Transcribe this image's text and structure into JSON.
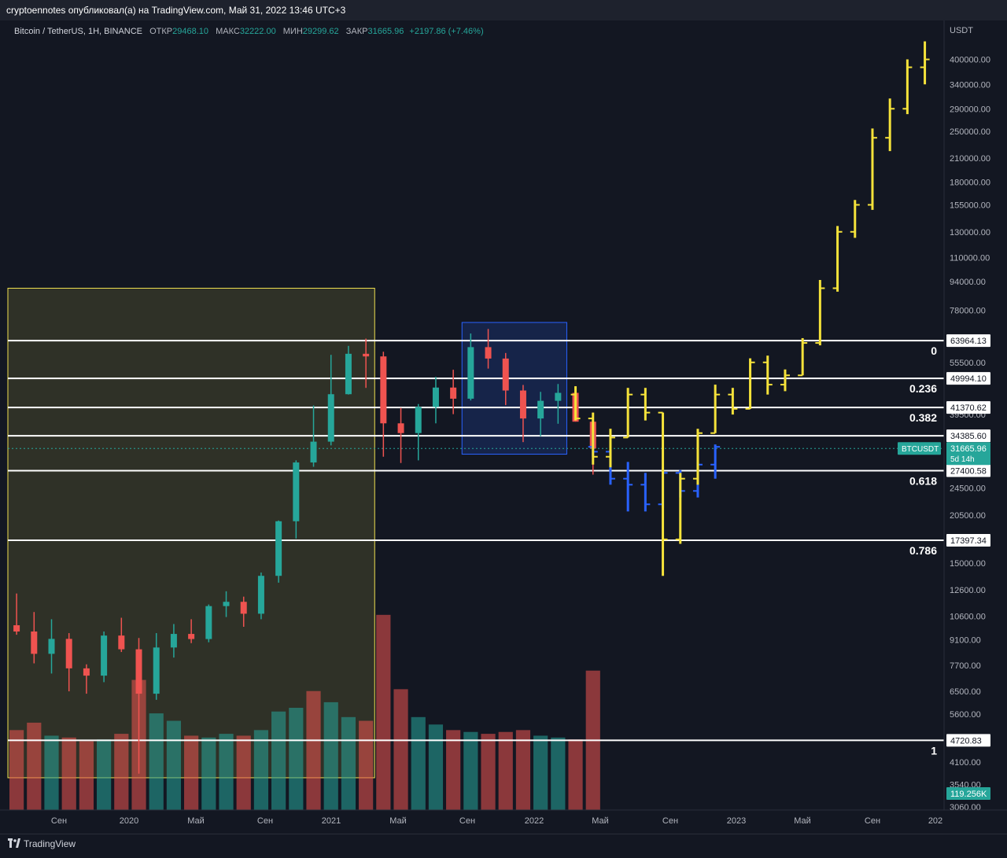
{
  "header": {
    "publish_text": "cryptoennotes опубликовал(а) на TradingView.com, Май 31, 2022 13:46 UTC+3"
  },
  "symbol_line": {
    "name": "Bitcoin / TetherUS, 1H, BINANCE",
    "open_label": "ОТКР",
    "open_value": "29468.10",
    "high_label": "МАКС",
    "high_value": "32222.00",
    "low_label": "МИН",
    "low_value": "29299.62",
    "close_label": "ЗАКР",
    "close_value": "31665.96",
    "change": "+2197.86 (+7.46%)"
  },
  "footer": {
    "logo_text": "TradingView"
  },
  "chart_data": {
    "type": "candlestick",
    "currency_label": "USDT",
    "y_scale": "log",
    "y_range": [
      3060,
      480000
    ],
    "y_ticks": [
      "400000.00",
      "340000.00",
      "290000.00",
      "250000.00",
      "210000.00",
      "180000.00",
      "155000.00",
      "130000.00",
      "110000.00",
      "94000.00",
      "78000.00",
      "55500.00",
      "39500.00",
      "24500.00",
      "20500.00",
      "15000.00",
      "12600.00",
      "10600.00",
      "9100.00",
      "7700.00",
      "6500.00",
      "5600.00",
      "4100.00",
      "3540.00",
      "3060.00"
    ],
    "x_labels": [
      "Сен",
      "2020",
      "Май",
      "Сен",
      "2021",
      "Май",
      "Сен",
      "2022",
      "Май",
      "Сен",
      "2023",
      "Май",
      "Сен",
      "202"
    ],
    "fib_levels": [
      {
        "ratio": "0",
        "price": "63964.13"
      },
      {
        "ratio": "0.236",
        "price": "49994.10"
      },
      {
        "ratio": "0.382",
        "price": "41370.62"
      },
      {
        "ratio": "",
        "price": "34385.60"
      },
      {
        "ratio": "0.618",
        "price": "27400.58"
      },
      {
        "ratio": "0.786",
        "price": "17397.34"
      },
      {
        "ratio": "1",
        "price": "4720.83"
      }
    ],
    "current_price": {
      "symbol": "BTCUSDT",
      "price": "31665.96",
      "countdown": "5d 14h"
    },
    "volume_badge": "119.256K",
    "historical": [
      {
        "t": "2019-08",
        "o": 10000,
        "h": 12300,
        "l": 9400,
        "c": 9600
      },
      {
        "t": "2019-09",
        "o": 9600,
        "h": 10900,
        "l": 7800,
        "c": 8300
      },
      {
        "t": "2019-10",
        "o": 8300,
        "h": 10400,
        "l": 7300,
        "c": 9150
      },
      {
        "t": "2019-11",
        "o": 9150,
        "h": 9500,
        "l": 6500,
        "c": 7550
      },
      {
        "t": "2019-12",
        "o": 7550,
        "h": 7750,
        "l": 6400,
        "c": 7200
      },
      {
        "t": "2020-01",
        "o": 7200,
        "h": 9600,
        "l": 6900,
        "c": 9350
      },
      {
        "t": "2020-02",
        "o": 9350,
        "h": 10500,
        "l": 8400,
        "c": 8550
      },
      {
        "t": "2020-03",
        "o": 8550,
        "h": 9200,
        "l": 3800,
        "c": 6400
      },
      {
        "t": "2020-04",
        "o": 6400,
        "h": 9500,
        "l": 6150,
        "c": 8650
      },
      {
        "t": "2020-05",
        "o": 8650,
        "h": 10080,
        "l": 8100,
        "c": 9450
      },
      {
        "t": "2020-06",
        "o": 9450,
        "h": 10400,
        "l": 8900,
        "c": 9140
      },
      {
        "t": "2020-07",
        "o": 9140,
        "h": 11450,
        "l": 8950,
        "c": 11330
      },
      {
        "t": "2020-08",
        "o": 11330,
        "h": 12480,
        "l": 10550,
        "c": 11650
      },
      {
        "t": "2020-09",
        "o": 11650,
        "h": 12050,
        "l": 9900,
        "c": 10780
      },
      {
        "t": "2020-10",
        "o": 10780,
        "h": 14100,
        "l": 10400,
        "c": 13800
      },
      {
        "t": "2020-11",
        "o": 13800,
        "h": 19800,
        "l": 13200,
        "c": 19700
      },
      {
        "t": "2020-12",
        "o": 19700,
        "h": 29300,
        "l": 17600,
        "c": 28900
      },
      {
        "t": "2021-01",
        "o": 28900,
        "h": 41900,
        "l": 28100,
        "c": 33100
      },
      {
        "t": "2021-02",
        "o": 33100,
        "h": 58300,
        "l": 32300,
        "c": 45100
      },
      {
        "t": "2021-03",
        "o": 45100,
        "h": 61800,
        "l": 45000,
        "c": 58700
      },
      {
        "t": "2021-04",
        "o": 58700,
        "h": 64800,
        "l": 47000,
        "c": 57700
      },
      {
        "t": "2021-05",
        "o": 57700,
        "h": 59500,
        "l": 30000,
        "c": 37300
      },
      {
        "t": "2021-06",
        "o": 37300,
        "h": 41300,
        "l": 28800,
        "c": 35000
      },
      {
        "t": "2021-07",
        "o": 35000,
        "h": 42300,
        "l": 29300,
        "c": 41500
      },
      {
        "t": "2021-08",
        "o": 41500,
        "h": 50500,
        "l": 37300,
        "c": 47100
      },
      {
        "t": "2021-09",
        "o": 47100,
        "h": 52900,
        "l": 39600,
        "c": 43800
      },
      {
        "t": "2021-10",
        "o": 43800,
        "h": 67000,
        "l": 43300,
        "c": 61300
      },
      {
        "t": "2021-11",
        "o": 61300,
        "h": 69000,
        "l": 53300,
        "c": 56900
      },
      {
        "t": "2021-12",
        "o": 56900,
        "h": 59000,
        "l": 42000,
        "c": 46200
      },
      {
        "t": "2022-01",
        "o": 46200,
        "h": 47900,
        "l": 33000,
        "c": 38500
      },
      {
        "t": "2022-02",
        "o": 38500,
        "h": 45800,
        "l": 34300,
        "c": 43200
      },
      {
        "t": "2022-03",
        "o": 43200,
        "h": 48200,
        "l": 37200,
        "c": 45500
      },
      {
        "t": "2022-04",
        "o": 45500,
        "h": 47500,
        "l": 37700,
        "c": 37700
      },
      {
        "t": "2022-05",
        "o": 37700,
        "h": 40000,
        "l": 26700,
        "c": 31666
      }
    ],
    "projection_yellow": [
      {
        "t": "2022-04",
        "o": 45000,
        "h": 47500,
        "l": 38000,
        "c": 38500
      },
      {
        "t": "2022-05",
        "o": 38500,
        "h": 40000,
        "l": 28500,
        "c": 30000
      },
      {
        "t": "2022-06",
        "o": 30000,
        "h": 36000,
        "l": 28000,
        "c": 34000
      },
      {
        "t": "2022-07",
        "o": 34000,
        "h": 47000,
        "l": 34000,
        "c": 45000
      },
      {
        "t": "2022-08",
        "o": 45000,
        "h": 47000,
        "l": 38000,
        "c": 40000
      },
      {
        "t": "2022-09",
        "o": 40000,
        "h": 40000,
        "l": 13800,
        "c": 17500
      },
      {
        "t": "2022-10",
        "o": 17500,
        "h": 27000,
        "l": 17000,
        "c": 26000
      },
      {
        "t": "2022-11",
        "o": 26000,
        "h": 36000,
        "l": 25000,
        "c": 35000
      },
      {
        "t": "2022-12",
        "o": 35000,
        "h": 48000,
        "l": 35000,
        "c": 45000
      },
      {
        "t": "2023-01",
        "o": 45000,
        "h": 47000,
        "l": 39500,
        "c": 41000
      },
      {
        "t": "2023-02",
        "o": 41000,
        "h": 57000,
        "l": 41000,
        "c": 55500
      },
      {
        "t": "2023-03",
        "o": 55500,
        "h": 58000,
        "l": 45000,
        "c": 48000
      },
      {
        "t": "2023-04",
        "o": 48000,
        "h": 53000,
        "l": 46000,
        "c": 51000
      },
      {
        "t": "2023-05",
        "o": 51000,
        "h": 65000,
        "l": 51000,
        "c": 63000
      },
      {
        "t": "2023-06",
        "o": 63000,
        "h": 95000,
        "l": 62000,
        "c": 90000
      },
      {
        "t": "2023-07",
        "o": 90000,
        "h": 135000,
        "l": 88000,
        "c": 130000
      },
      {
        "t": "2023-08",
        "o": 130000,
        "h": 160000,
        "l": 125000,
        "c": 155000
      },
      {
        "t": "2023-09",
        "o": 155000,
        "h": 255000,
        "l": 150000,
        "c": 240000
      },
      {
        "t": "2023-10",
        "o": 240000,
        "h": 310000,
        "l": 220000,
        "c": 290000
      },
      {
        "t": "2023-11",
        "o": 290000,
        "h": 400000,
        "l": 280000,
        "c": 380000
      },
      {
        "t": "2023-12",
        "o": 380000,
        "h": 450000,
        "l": 340000,
        "c": 400000
      }
    ],
    "projection_blue": [
      {
        "t": "2022-05",
        "o": 32000,
        "h": 35000,
        "l": 30000,
        "c": 31000
      },
      {
        "t": "2022-06",
        "o": 31000,
        "h": 31500,
        "l": 25000,
        "c": 26000
      },
      {
        "t": "2022-07",
        "o": 26000,
        "h": 29000,
        "l": 21000,
        "c": 25000
      },
      {
        "t": "2022-08",
        "o": 25000,
        "h": 27000,
        "l": 21000,
        "c": 22000
      },
      {
        "t": "2022-09",
        "o": 22000,
        "h": 28000,
        "l": 21500,
        "c": 27000
      },
      {
        "t": "2022-10",
        "o": 27000,
        "h": 27500,
        "l": 23000,
        "c": 24000
      },
      {
        "t": "2022-11",
        "o": 24000,
        "h": 29000,
        "l": 23000,
        "c": 28500
      },
      {
        "t": "2022-12",
        "o": 28500,
        "h": 32500,
        "l": 26000,
        "c": 32000
      }
    ],
    "volume": [
      {
        "t": "2019-08",
        "v": 4300,
        "up": false
      },
      {
        "t": "2019-09",
        "v": 4700,
        "up": false
      },
      {
        "t": "2019-10",
        "v": 4000,
        "up": true
      },
      {
        "t": "2019-11",
        "v": 3900,
        "up": false
      },
      {
        "t": "2019-12",
        "v": 3700,
        "up": false
      },
      {
        "t": "2020-01",
        "v": 3800,
        "up": true
      },
      {
        "t": "2020-02",
        "v": 4100,
        "up": false
      },
      {
        "t": "2020-03",
        "v": 7000,
        "up": false
      },
      {
        "t": "2020-04",
        "v": 5200,
        "up": true
      },
      {
        "t": "2020-05",
        "v": 4800,
        "up": true
      },
      {
        "t": "2020-06",
        "v": 4000,
        "up": false
      },
      {
        "t": "2020-07",
        "v": 3900,
        "up": true
      },
      {
        "t": "2020-08",
        "v": 4100,
        "up": true
      },
      {
        "t": "2020-09",
        "v": 4000,
        "up": false
      },
      {
        "t": "2020-10",
        "v": 4300,
        "up": true
      },
      {
        "t": "2020-11",
        "v": 5300,
        "up": true
      },
      {
        "t": "2020-12",
        "v": 5500,
        "up": true
      },
      {
        "t": "2021-01",
        "v": 6400,
        "up": false
      },
      {
        "t": "2021-02",
        "v": 5800,
        "up": true
      },
      {
        "t": "2021-03",
        "v": 5000,
        "up": true
      },
      {
        "t": "2021-04",
        "v": 4800,
        "up": false
      },
      {
        "t": "2021-05",
        "v": 10500,
        "up": false
      },
      {
        "t": "2021-06",
        "v": 6500,
        "up": false
      },
      {
        "t": "2021-07",
        "v": 5000,
        "up": true
      },
      {
        "t": "2021-08",
        "v": 4600,
        "up": true
      },
      {
        "t": "2021-09",
        "v": 4300,
        "up": false
      },
      {
        "t": "2021-10",
        "v": 4200,
        "up": true
      },
      {
        "t": "2021-11",
        "v": 4100,
        "up": false
      },
      {
        "t": "2021-12",
        "v": 4200,
        "up": false
      },
      {
        "t": "2022-01",
        "v": 4300,
        "up": false
      },
      {
        "t": "2022-02",
        "v": 4000,
        "up": true
      },
      {
        "t": "2022-03",
        "v": 3900,
        "up": true
      },
      {
        "t": "2022-04",
        "v": 3800,
        "up": false
      },
      {
        "t": "2022-05",
        "v": 7500,
        "up": false
      }
    ],
    "annotations": [
      {
        "kind": "rect",
        "color": "#f0e050",
        "t0": "2019-08",
        "t1": "2021-04",
        "p0": 90000,
        "p1": 3700
      },
      {
        "kind": "rect",
        "color": "#2962ff",
        "t0": "2021-10",
        "t1": "2022-03",
        "p0": 72000,
        "p1": 30500
      }
    ]
  }
}
